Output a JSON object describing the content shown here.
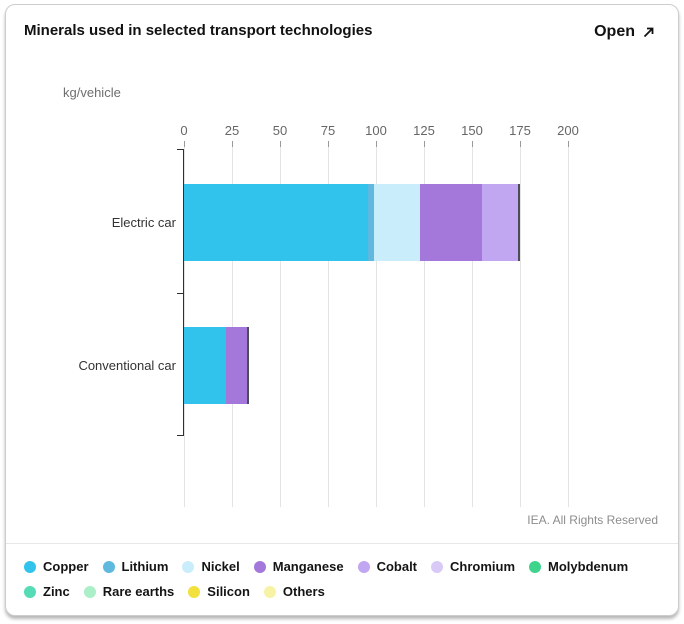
{
  "header": {
    "title": "Minerals used in selected transport technologies",
    "open_label": "Open",
    "open_icon": "expand-arrow-icon"
  },
  "footer": {
    "credit": "IEA. All Rights Reserved"
  },
  "chart_data": {
    "type": "bar",
    "orientation": "horizontal",
    "stacked": true,
    "title": "Minerals used in selected transport technologies",
    "xlabel": "kg/vehicle",
    "xlim": [
      0,
      200
    ],
    "x_ticks": [
      0,
      25,
      50,
      75,
      100,
      125,
      150,
      175,
      200
    ],
    "grid": true,
    "legend_position": "bottom",
    "categories": [
      "Electric car",
      "Conventional car"
    ],
    "series": [
      {
        "name": "Copper",
        "color": "#31C3EC",
        "values": [
          96,
          22
        ]
      },
      {
        "name": "Lithium",
        "color": "#5FB8DD",
        "values": [
          3,
          0
        ]
      },
      {
        "name": "Nickel",
        "color": "#C9EDFA",
        "values": [
          24,
          0
        ]
      },
      {
        "name": "Manganese",
        "color": "#A478DB",
        "values": [
          32,
          12
        ]
      },
      {
        "name": "Cobalt",
        "color": "#C1A6F1",
        "values": [
          20,
          0
        ]
      },
      {
        "name": "Chromium",
        "color": "#D8C9F6",
        "values": [
          0,
          0
        ]
      },
      {
        "name": "Molybdenum",
        "color": "#3FD48C",
        "values": [
          0,
          0
        ]
      },
      {
        "name": "Zinc",
        "color": "#55DCB6",
        "values": [
          0,
          0
        ]
      },
      {
        "name": "Rare earths",
        "color": "#ABEFC9",
        "values": [
          0,
          0
        ]
      },
      {
        "name": "Silicon",
        "color": "#F2E13C",
        "values": [
          0,
          0
        ]
      },
      {
        "name": "Others",
        "color": "#F7F3A4",
        "values": [
          0,
          0
        ]
      }
    ]
  }
}
